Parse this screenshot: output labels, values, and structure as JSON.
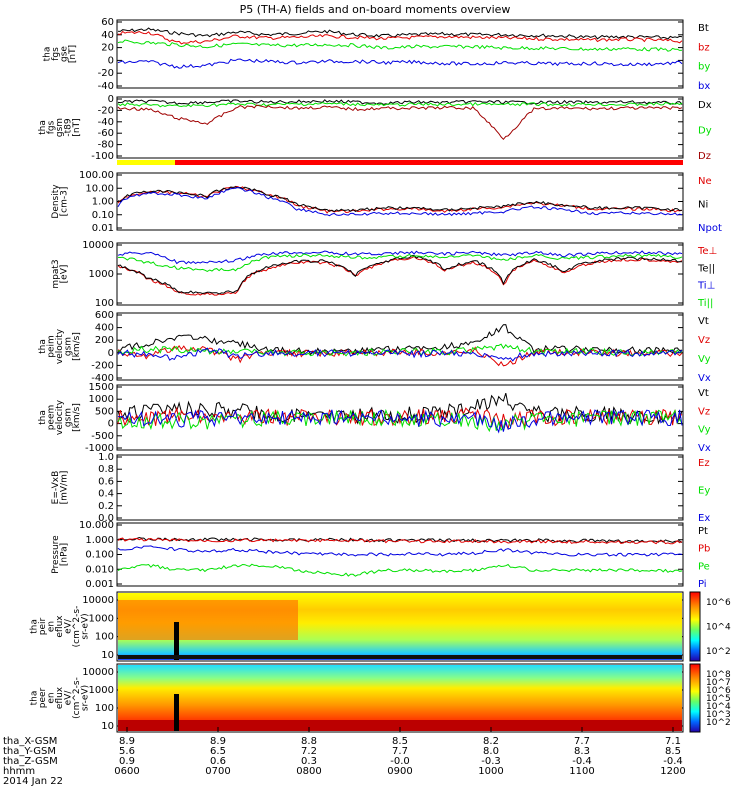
{
  "title": "P5 (TH-A) fields and on-board moments overview",
  "colors": {
    "black": "#000000",
    "red": "#e00000",
    "green": "#00e000",
    "blue": "#0000e0",
    "darkred": "#a00000"
  },
  "chart_data": [
    {
      "type": "line",
      "panel": "fgs_gse",
      "ylabel_lines": [
        "tha",
        "fgs",
        "gse",
        "[nT]"
      ],
      "yticks": [
        "60",
        "40",
        "20",
        "0",
        "-20",
        "-40"
      ],
      "ylim": [
        -40,
        62
      ],
      "series": [
        {
          "name": "Bt",
          "color": "#000000",
          "values": [
            45,
            48,
            42,
            38,
            44,
            40,
            42,
            45,
            40,
            38,
            40,
            41,
            40,
            40,
            39,
            38,
            36,
            37,
            36,
            35
          ]
        },
        {
          "name": "bz",
          "color": "#e00000",
          "values": [
            42,
            44,
            28,
            30,
            38,
            35,
            36,
            38,
            36,
            34,
            36,
            37,
            36,
            35,
            34,
            33,
            32,
            33,
            32,
            30
          ]
        },
        {
          "name": "by",
          "color": "#00e000",
          "values": [
            30,
            28,
            25,
            22,
            26,
            24,
            24,
            25,
            24,
            20,
            22,
            22,
            22,
            20,
            20,
            19,
            18,
            19,
            18,
            17
          ]
        },
        {
          "name": "bx",
          "color": "#0000e0",
          "values": [
            -2,
            0,
            -8,
            -6,
            2,
            0,
            -2,
            0,
            0,
            -2,
            -1,
            -3,
            -4,
            -2,
            -3,
            -4,
            -3,
            -5,
            -4,
            -2
          ]
        }
      ]
    },
    {
      "type": "line",
      "panel": "fgs_gsm_t89",
      "ylabel_lines": [
        "tha",
        "fgs",
        "gsm",
        "-t89",
        "[nT]"
      ],
      "yticks": [
        "0",
        "-20",
        "-40",
        "-60",
        "-80",
        "-100"
      ],
      "ylim": [
        -108,
        12
      ],
      "series": [
        {
          "name": "Dx",
          "color": "#000000",
          "values": [
            2,
            4,
            0,
            2,
            4,
            2,
            3,
            4,
            2,
            0,
            2,
            1,
            3,
            2,
            1,
            2,
            1,
            2,
            1,
            0
          ]
        },
        {
          "name": "Dy",
          "color": "#00e000",
          "values": [
            -2,
            -4,
            -6,
            -4,
            -2,
            -3,
            -2,
            -1,
            -2,
            -4,
            -2,
            -3,
            -2,
            -3,
            -2,
            -3,
            -2,
            -3,
            -2,
            -1
          ]
        },
        {
          "name": "Dz",
          "color": "#a00000",
          "values": [
            -10,
            -12,
            -30,
            -40,
            -8,
            -6,
            -10,
            -8,
            -12,
            -10,
            -10,
            -9,
            -10,
            -70,
            -12,
            -10,
            -11,
            -10,
            -10,
            -9
          ]
        }
      ]
    },
    {
      "type": "line",
      "panel": "density",
      "ylabel_lines": [
        "Density",
        "[cm-3]"
      ],
      "yticks": [
        "100.00",
        "10.00",
        "1.00",
        "0.10",
        "0.01"
      ],
      "ylim": [
        0.01,
        100
      ],
      "log": true,
      "series": [
        {
          "name": "Ne",
          "color": "#e00000",
          "values": [
            0.8,
            5,
            4,
            2,
            10,
            3,
            0.5,
            0.2,
            0.2,
            0.3,
            0.3,
            0.2,
            0.3,
            0.4,
            0.8,
            0.5,
            0.3,
            0.3,
            0.3,
            0.2
          ]
        },
        {
          "name": "Ni",
          "color": "#000000",
          "values": [
            0.9,
            5.5,
            4.5,
            2.2,
            11,
            3.2,
            0.6,
            0.25,
            0.25,
            0.35,
            0.35,
            0.25,
            0.35,
            0.45,
            0.9,
            0.55,
            0.35,
            0.35,
            0.35,
            0.25
          ]
        },
        {
          "name": "Npot",
          "color": "#0000e0",
          "values": [
            0.5,
            4,
            3,
            1.5,
            8,
            2,
            0.3,
            0.12,
            0.12,
            0.15,
            0.15,
            0.12,
            0.15,
            0.2,
            0.4,
            0.25,
            0.15,
            0.15,
            0.15,
            0.12
          ]
        }
      ]
    },
    {
      "type": "line",
      "panel": "temperature",
      "ylabel_lines": [
        "mpat3",
        "[eV]"
      ],
      "yticks": [
        "10000",
        "1000",
        "100"
      ],
      "ylim": [
        25,
        10000
      ],
      "log": true,
      "series": [
        {
          "name": "Te⊥",
          "color": "#e00000",
          "values": [
            1000,
            300,
            80,
            70,
            80,
            800,
            1500,
            1500,
            400,
            1500,
            2500,
            700,
            1500,
            150,
            1800,
            500,
            1500,
            2000,
            2000,
            1600
          ]
        },
        {
          "name": "Te||",
          "color": "#000000",
          "values": [
            1100,
            330,
            90,
            80,
            90,
            900,
            1700,
            1700,
            450,
            1700,
            2700,
            800,
            1700,
            170,
            2000,
            600,
            1700,
            2200,
            2200,
            1800
          ]
        },
        {
          "name": "Ti⊥",
          "color": "#0000e0",
          "values": [
            3500,
            4000,
            1500,
            1500,
            1800,
            3500,
            4000,
            4000,
            3500,
            3500,
            4000,
            3500,
            4000,
            3000,
            4000,
            3000,
            3500,
            4000,
            4000,
            3500
          ]
        },
        {
          "name": "Ti||",
          "color": "#00e000",
          "values": [
            2500,
            1500,
            900,
            700,
            800,
            2500,
            3000,
            3000,
            2500,
            2500,
            3000,
            2500,
            3000,
            1800,
            3000,
            2200,
            2500,
            3000,
            3000,
            2500
          ]
        }
      ]
    },
    {
      "type": "line",
      "panel": "peim_velocity",
      "ylabel_lines": [
        "tha",
        "peim",
        "velocity",
        "gsm",
        "[km/s]"
      ],
      "yticks": [
        "600",
        "400",
        "200",
        "0",
        "-200",
        "-400"
      ],
      "ylim": [
        -400,
        600
      ],
      "series": [
        {
          "name": "Vt",
          "color": "#000000",
          "values": [
            50,
            150,
            250,
            200,
            150,
            50,
            30,
            20,
            40,
            60,
            80,
            100,
            150,
            400,
            60,
            60,
            60,
            50,
            50,
            50
          ]
        },
        {
          "name": "Vz",
          "color": "#e00000",
          "values": [
            0,
            -50,
            100,
            50,
            -100,
            0,
            0,
            0,
            0,
            10,
            20,
            0,
            50,
            -200,
            20,
            10,
            10,
            0,
            0,
            0
          ]
        },
        {
          "name": "Vy",
          "color": "#00e000",
          "values": [
            20,
            60,
            50,
            40,
            20,
            10,
            0,
            0,
            10,
            20,
            30,
            20,
            60,
            100,
            30,
            20,
            20,
            10,
            10,
            10
          ]
        },
        {
          "name": "Vx",
          "color": "#0000e0",
          "values": [
            10,
            -30,
            -80,
            60,
            -50,
            0,
            0,
            0,
            0,
            10,
            -10,
            0,
            -20,
            -100,
            0,
            0,
            0,
            0,
            0,
            0
          ]
        }
      ]
    },
    {
      "type": "line",
      "panel": "peem_velocity",
      "ylabel_lines": [
        "tha",
        "peem",
        "velocity",
        "gsm",
        "[km/s]"
      ],
      "yticks": [
        "1500",
        "1000",
        "500",
        "0",
        "-500",
        "-1000"
      ],
      "ylim": [
        -1500,
        1500
      ],
      "series": [
        {
          "name": "Vt",
          "color": "#000000",
          "values": [
            200,
            300,
            400,
            350,
            300,
            200,
            100,
            80,
            80,
            100,
            150,
            200,
            600,
            800,
            200,
            150,
            150,
            100,
            100,
            80
          ]
        },
        {
          "name": "Vz",
          "color": "#e00000",
          "values": [
            0,
            -100,
            100,
            50,
            -50,
            0,
            0,
            0,
            0,
            20,
            40,
            0,
            100,
            -200,
            20,
            0,
            0,
            0,
            0,
            0
          ]
        },
        {
          "name": "Vy",
          "color": "#00e000",
          "values": [
            -100,
            -200,
            -150,
            -200,
            -100,
            -50,
            -20,
            -10,
            -20,
            -50,
            -100,
            -100,
            -200,
            -300,
            -100,
            -50,
            -50,
            -30,
            -20,
            -20
          ]
        },
        {
          "name": "Vx",
          "color": "#0000e0",
          "values": [
            0,
            -50,
            -100,
            0,
            -50,
            0,
            0,
            0,
            0,
            -20,
            -50,
            -50,
            -100,
            -400,
            -50,
            0,
            0,
            0,
            0,
            0
          ]
        }
      ]
    },
    {
      "type": "line",
      "panel": "efield",
      "ylabel_lines": [
        "E=-VxB",
        "[mV/m]"
      ],
      "yticks": [
        "1.0",
        "0.8",
        "0.6",
        "0.4",
        "0.2",
        "0.0"
      ],
      "ylim": [
        0,
        1
      ],
      "series": [
        {
          "name": "Ez",
          "color": "#e00000",
          "values": []
        },
        {
          "name": "Ey",
          "color": "#00e000",
          "values": []
        },
        {
          "name": "Ex",
          "color": "#0000e0",
          "values": []
        }
      ]
    },
    {
      "type": "line",
      "panel": "pressure",
      "ylabel_lines": [
        "Pressure",
        "[nPa]"
      ],
      "yticks": [
        "10.000",
        "1.000",
        "0.100",
        "0.010",
        "0.001"
      ],
      "ylim": [
        0.001,
        10
      ],
      "log": true,
      "series": [
        {
          "name": "Pt",
          "color": "#000000",
          "values": [
            1.0,
            1.0,
            0.9,
            0.9,
            0.9,
            0.9,
            0.85,
            0.85,
            0.85,
            0.8,
            0.8,
            0.8,
            0.8,
            0.75,
            0.8,
            0.75,
            0.75,
            0.7,
            0.7,
            0.7
          ]
        },
        {
          "name": "Pb",
          "color": "#e00000",
          "values": [
            0.9,
            0.9,
            0.8,
            0.8,
            0.8,
            0.8,
            0.75,
            0.75,
            0.75,
            0.7,
            0.7,
            0.7,
            0.7,
            0.65,
            0.7,
            0.65,
            0.65,
            0.6,
            0.6,
            0.6
          ]
        },
        {
          "name": "Pe",
          "color": "#00e000",
          "values": [
            0.01,
            0.02,
            0.01,
            0.01,
            0.02,
            0.02,
            0.01,
            0.006,
            0.005,
            0.01,
            0.01,
            0.008,
            0.01,
            0.02,
            0.01,
            0.01,
            0.01,
            0.01,
            0.01,
            0.008
          ]
        },
        {
          "name": "Pi",
          "color": "#0000e0",
          "values": [
            0.2,
            0.3,
            0.2,
            0.15,
            0.2,
            0.15,
            0.12,
            0.1,
            0.1,
            0.1,
            0.12,
            0.1,
            0.12,
            0.2,
            0.12,
            0.1,
            0.1,
            0.1,
            0.1,
            0.1
          ]
        }
      ]
    },
    {
      "type": "heatmap",
      "panel": "peir_spectrogram",
      "ylabel_lines": [
        "tha",
        "peir",
        "en",
        "eflux",
        "eV/",
        "(cm^2-s-",
        "sr-eV)"
      ],
      "yticks": [
        "10000",
        "1000",
        "100",
        "10"
      ],
      "colorbar_ticks": [
        "10^6",
        "10^4",
        "10^2"
      ]
    },
    {
      "type": "heatmap",
      "panel": "peer_spectrogram",
      "ylabel_lines": [
        "tha",
        "peer",
        "en",
        "eflux",
        "eV/",
        "(cm^2-s-",
        "sr-eV)"
      ],
      "yticks": [
        "10000",
        "1000",
        "100",
        "10"
      ],
      "colorbar_ticks": [
        "10^8",
        "10^7",
        "10^6",
        "10^5",
        "10^4",
        "10^3",
        "10^2"
      ]
    }
  ],
  "xaxis": {
    "rows": [
      {
        "label": "tha_X-GSM",
        "values": [
          "8.9",
          "8.9",
          "8.8",
          "8.5",
          "8.2",
          "7.7",
          "7.1"
        ]
      },
      {
        "label": "tha_Y-GSM",
        "values": [
          "5.6",
          "6.5",
          "7.2",
          "7.7",
          "8.0",
          "8.3",
          "8.5"
        ]
      },
      {
        "label": "tha_Z-GSM",
        "values": [
          "0.9",
          "0.6",
          "0.3",
          "-0.0",
          "-0.3",
          "-0.4",
          "-0.4"
        ]
      },
      {
        "label": "hhmm",
        "values": [
          "0600",
          "0700",
          "0800",
          "0900",
          "1000",
          "1100",
          "1200"
        ]
      }
    ],
    "date": "2014 Jan 22"
  }
}
